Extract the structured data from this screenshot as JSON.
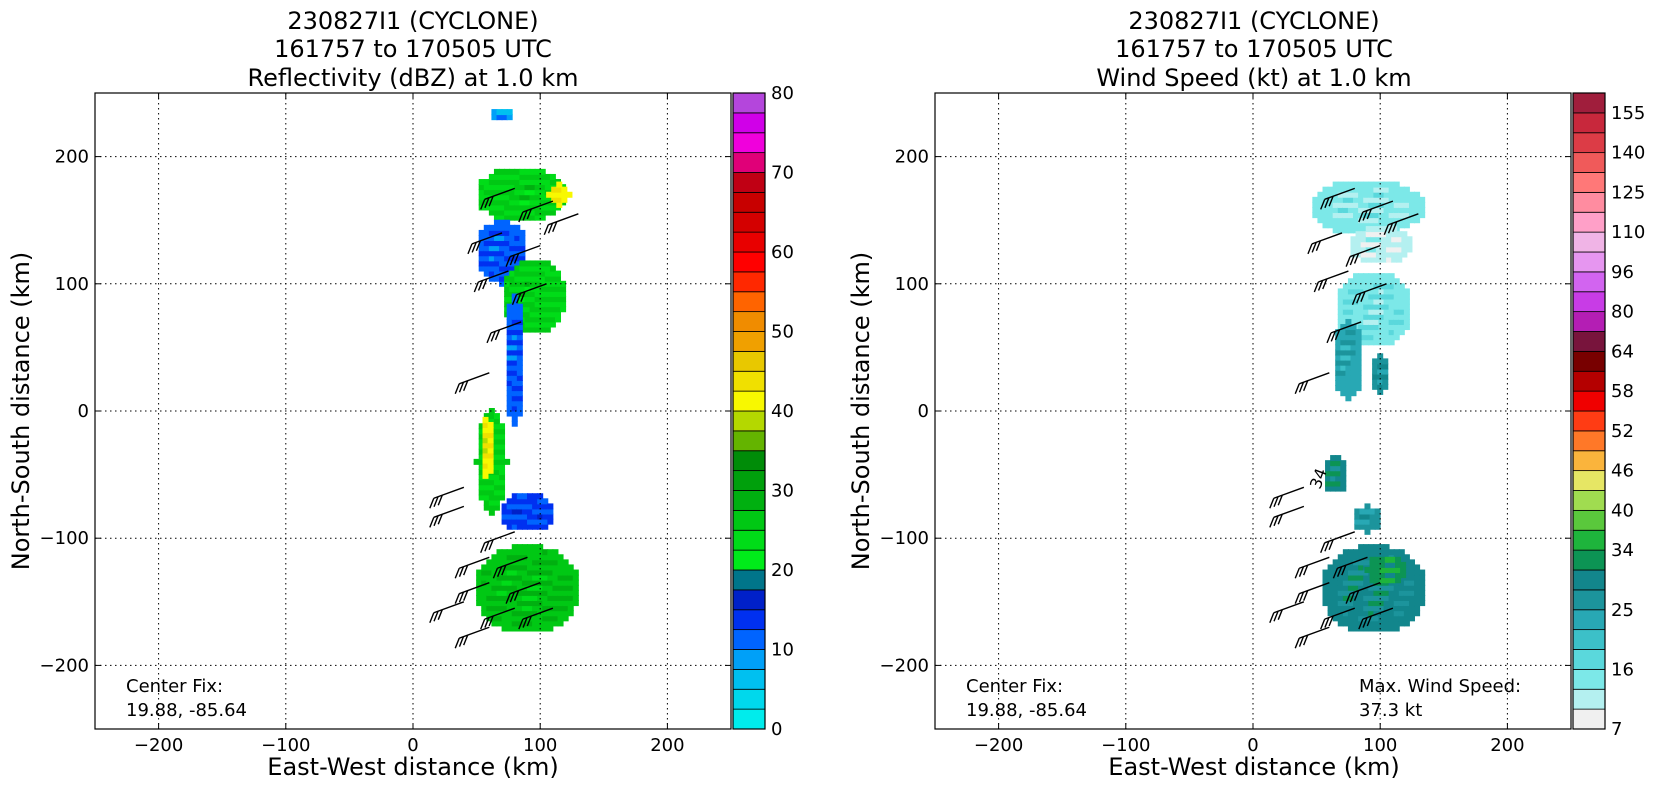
{
  "chart_data": [
    {
      "type": "heatmap",
      "title_lines": [
        "230827I1 (CYCLONE)",
        "161757 to 170505 UTC",
        "Reflectivity (dBZ) at 1.0 km"
      ],
      "xlabel": "East-West distance (km)",
      "ylabel": "North-South distance (km)",
      "xlim": [
        -250,
        250
      ],
      "ylim": [
        -250,
        250
      ],
      "xticks": [
        -200,
        -100,
        0,
        100,
        200
      ],
      "yticks": [
        -200,
        -100,
        0,
        100,
        200
      ],
      "grid": true,
      "colorbar": {
        "vmin": 0,
        "vmax": 80,
        "ticks": [
          0,
          10,
          20,
          30,
          40,
          50,
          60,
          70,
          80
        ],
        "bins": [
          {
            "lo": 0,
            "hi": 2.5,
            "color": "#00ecec"
          },
          {
            "lo": 2.5,
            "hi": 5,
            "color": "#00d8ec"
          },
          {
            "lo": 5,
            "hi": 7.5,
            "color": "#00c0f0"
          },
          {
            "lo": 7.5,
            "hi": 10,
            "color": "#00a0f8"
          },
          {
            "lo": 10,
            "hi": 12.5,
            "color": "#0064ff"
          },
          {
            "lo": 12.5,
            "hi": 15,
            "color": "#0030f0"
          },
          {
            "lo": 15,
            "hi": 17.5,
            "color": "#0020c8"
          },
          {
            "lo": 17.5,
            "hi": 20,
            "color": "#00758a"
          },
          {
            "lo": 20,
            "hi": 22.5,
            "color": "#00ec1a"
          },
          {
            "lo": 22.5,
            "hi": 25,
            "color": "#00dc18"
          },
          {
            "lo": 25,
            "hi": 27.5,
            "color": "#00c814"
          },
          {
            "lo": 27.5,
            "hi": 30,
            "color": "#00b010"
          },
          {
            "lo": 30,
            "hi": 32.5,
            "color": "#00a00c"
          },
          {
            "lo": 32.5,
            "hi": 35,
            "color": "#008c08"
          },
          {
            "lo": 35,
            "hi": 37.5,
            "color": "#64b400"
          },
          {
            "lo": 37.5,
            "hi": 40,
            "color": "#b4d800"
          },
          {
            "lo": 40,
            "hi": 42.5,
            "color": "#f8f800"
          },
          {
            "lo": 42.5,
            "hi": 45,
            "color": "#f0e000"
          },
          {
            "lo": 45,
            "hi": 47.5,
            "color": "#e8c800"
          },
          {
            "lo": 47.5,
            "hi": 50,
            "color": "#f0a000"
          },
          {
            "lo": 50,
            "hi": 52.5,
            "color": "#f08c00"
          },
          {
            "lo": 52.5,
            "hi": 55,
            "color": "#ff6400"
          },
          {
            "lo": 55,
            "hi": 57.5,
            "color": "#ff2800"
          },
          {
            "lo": 57.5,
            "hi": 60,
            "color": "#ff0000"
          },
          {
            "lo": 60,
            "hi": 62.5,
            "color": "#e80000"
          },
          {
            "lo": 62.5,
            "hi": 65,
            "color": "#d40000"
          },
          {
            "lo": 65,
            "hi": 67.5,
            "color": "#c80000"
          },
          {
            "lo": 67.5,
            "hi": 70,
            "color": "#c00014"
          },
          {
            "lo": 70,
            "hi": 72.5,
            "color": "#e00078"
          },
          {
            "lo": 72.5,
            "hi": 75,
            "color": "#f000dc"
          },
          {
            "lo": 75,
            "hi": 77.5,
            "color": "#d000e8"
          },
          {
            "lo": 77.5,
            "hi": 80,
            "color": "#b446dc"
          }
        ]
      },
      "annotations": [
        {
          "id": "center_fix",
          "lines": [
            "Center Fix:",
            "19.88, -85.64"
          ]
        }
      ],
      "field_blobs": [
        {
          "cx": 85,
          "cy": 170,
          "rx": 35,
          "ry": 22,
          "value": 25
        },
        {
          "cx": 70,
          "cy": 125,
          "rx": 20,
          "ry": 25,
          "value": 12
        },
        {
          "cx": 95,
          "cy": 90,
          "rx": 25,
          "ry": 30,
          "value": 25
        },
        {
          "cx": 80,
          "cy": 40,
          "rx": 8,
          "ry": 50,
          "value": 12
        },
        {
          "cx": 62,
          "cy": -40,
          "rx": 12,
          "ry": 40,
          "value": 25
        },
        {
          "cx": 58,
          "cy": -30,
          "rx": 5,
          "ry": 25,
          "value": 42
        },
        {
          "cx": 90,
          "cy": -80,
          "rx": 22,
          "ry": 15,
          "value": 13
        },
        {
          "cx": 90,
          "cy": -140,
          "rx": 42,
          "ry": 35,
          "value": 27
        },
        {
          "cx": 115,
          "cy": 170,
          "rx": 8,
          "ry": 8,
          "value": 42
        },
        {
          "cx": 70,
          "cy": 232,
          "rx": 10,
          "ry": 5,
          "value": 8
        }
      ],
      "wind_barbs": [
        {
          "x": 80,
          "y": 175
        },
        {
          "x": 110,
          "y": 165
        },
        {
          "x": 130,
          "y": 155
        },
        {
          "x": 70,
          "y": 140
        },
        {
          "x": 100,
          "y": 130
        },
        {
          "x": 75,
          "y": 110
        },
        {
          "x": 105,
          "y": 100
        },
        {
          "x": 85,
          "y": 70
        },
        {
          "x": 60,
          "y": 30
        },
        {
          "x": 40,
          "y": -60
        },
        {
          "x": 40,
          "y": -75
        },
        {
          "x": 80,
          "y": -95
        },
        {
          "x": 60,
          "y": -115
        },
        {
          "x": 90,
          "y": -115
        },
        {
          "x": 60,
          "y": -135
        },
        {
          "x": 100,
          "y": -135
        },
        {
          "x": 40,
          "y": -150
        },
        {
          "x": 80,
          "y": -155
        },
        {
          "x": 110,
          "y": -155
        },
        {
          "x": 60,
          "y": -170
        }
      ]
    },
    {
      "type": "heatmap",
      "title_lines": [
        "230827I1 (CYCLONE)",
        "161757 to 170505 UTC",
        "Wind Speed (kt) at 1.0 km"
      ],
      "xlabel": "East-West distance (km)",
      "ylabel": "North-South distance (km)",
      "xlim": [
        -250,
        250
      ],
      "ylim": [
        -250,
        250
      ],
      "xticks": [
        -200,
        -100,
        0,
        100,
        200
      ],
      "yticks": [
        -200,
        -100,
        0,
        100,
        200
      ],
      "grid": true,
      "colorbar": {
        "vmin": 7,
        "vmax": 160,
        "ticks": [
          7,
          16,
          25,
          34,
          40,
          46,
          52,
          58,
          64,
          80,
          96,
          110,
          125,
          140,
          155
        ],
        "bins": [
          {
            "lo": 7,
            "hi": 10,
            "color": "#f0f0f0"
          },
          {
            "lo": 10,
            "hi": 13,
            "color": "#b4f0f0"
          },
          {
            "lo": 13,
            "hi": 16,
            "color": "#7ce8e8"
          },
          {
            "lo": 16,
            "hi": 19,
            "color": "#5ad8dc"
          },
          {
            "lo": 19,
            "hi": 22,
            "color": "#3cc0c8"
          },
          {
            "lo": 22,
            "hi": 25,
            "color": "#28a8b4"
          },
          {
            "lo": 25,
            "hi": 28,
            "color": "#1c949c"
          },
          {
            "lo": 28,
            "hi": 31,
            "color": "#12868c"
          },
          {
            "lo": 31,
            "hi": 34,
            "color": "#0c9454"
          },
          {
            "lo": 34,
            "hi": 37,
            "color": "#1eb43c"
          },
          {
            "lo": 37,
            "hi": 40,
            "color": "#5ac83c"
          },
          {
            "lo": 40,
            "hi": 43,
            "color": "#a0dc50"
          },
          {
            "lo": 43,
            "hi": 46,
            "color": "#e6e664"
          },
          {
            "lo": 46,
            "hi": 49,
            "color": "#fab43c"
          },
          {
            "lo": 49,
            "hi": 52,
            "color": "#ff7828"
          },
          {
            "lo": 52,
            "hi": 55,
            "color": "#ff3c14"
          },
          {
            "lo": 55,
            "hi": 58,
            "color": "#f00000"
          },
          {
            "lo": 58,
            "hi": 61,
            "color": "#b40000"
          },
          {
            "lo": 61,
            "hi": 64,
            "color": "#780000"
          },
          {
            "lo": 64,
            "hi": 72,
            "color": "#78143c"
          },
          {
            "lo": 72,
            "hi": 80,
            "color": "#b41eb4"
          },
          {
            "lo": 80,
            "hi": 88,
            "color": "#c83ce6"
          },
          {
            "lo": 88,
            "hi": 96,
            "color": "#d264f0"
          },
          {
            "lo": 96,
            "hi": 103,
            "color": "#e696f0"
          },
          {
            "lo": 103,
            "hi": 110,
            "color": "#f0b4e6"
          },
          {
            "lo": 110,
            "hi": 118,
            "color": "#ffa0c8"
          },
          {
            "lo": 118,
            "hi": 125,
            "color": "#ff8ca0"
          },
          {
            "lo": 125,
            "hi": 133,
            "color": "#ff7878"
          },
          {
            "lo": 133,
            "hi": 140,
            "color": "#f05a5a"
          },
          {
            "lo": 140,
            "hi": 148,
            "color": "#dc3c46"
          },
          {
            "lo": 148,
            "hi": 155,
            "color": "#c8283c"
          },
          {
            "lo": 155,
            "hi": 160,
            "color": "#a01e3c"
          }
        ]
      },
      "annotations": [
        {
          "id": "center_fix",
          "lines": [
            "Center Fix:",
            "19.88, -85.64"
          ]
        },
        {
          "id": "max_wind",
          "lines": [
            "Max. Wind Speed:",
            "37.3 kt"
          ]
        }
      ],
      "contour_label": "34",
      "field_blobs": [
        {
          "cx": 90,
          "cy": 160,
          "rx": 45,
          "ry": 22,
          "value": 14
        },
        {
          "cx": 100,
          "cy": 130,
          "rx": 25,
          "ry": 15,
          "value": 11
        },
        {
          "cx": 95,
          "cy": 80,
          "rx": 30,
          "ry": 30,
          "value": 15
        },
        {
          "cx": 75,
          "cy": 40,
          "rx": 12,
          "ry": 30,
          "value": 24
        },
        {
          "cx": 100,
          "cy": 30,
          "rx": 8,
          "ry": 15,
          "value": 27
        },
        {
          "cx": 65,
          "cy": -50,
          "rx": 10,
          "ry": 15,
          "value": 30
        },
        {
          "cx": 90,
          "cy": -85,
          "rx": 12,
          "ry": 10,
          "value": 26
        },
        {
          "cx": 95,
          "cy": -140,
          "rx": 42,
          "ry": 35,
          "value": 29
        },
        {
          "cx": 105,
          "cy": -125,
          "rx": 15,
          "ry": 12,
          "value": 33
        }
      ],
      "wind_barbs": [
        {
          "x": 80,
          "y": 175
        },
        {
          "x": 110,
          "y": 165
        },
        {
          "x": 130,
          "y": 155
        },
        {
          "x": 70,
          "y": 140
        },
        {
          "x": 100,
          "y": 130
        },
        {
          "x": 75,
          "y": 110
        },
        {
          "x": 105,
          "y": 100
        },
        {
          "x": 85,
          "y": 70
        },
        {
          "x": 60,
          "y": 30
        },
        {
          "x": 40,
          "y": -60
        },
        {
          "x": 40,
          "y": -75
        },
        {
          "x": 80,
          "y": -95
        },
        {
          "x": 60,
          "y": -115
        },
        {
          "x": 90,
          "y": -115
        },
        {
          "x": 60,
          "y": -135
        },
        {
          "x": 100,
          "y": -135
        },
        {
          "x": 40,
          "y": -150
        },
        {
          "x": 80,
          "y": -155
        },
        {
          "x": 110,
          "y": -155
        },
        {
          "x": 60,
          "y": -170
        }
      ]
    }
  ]
}
